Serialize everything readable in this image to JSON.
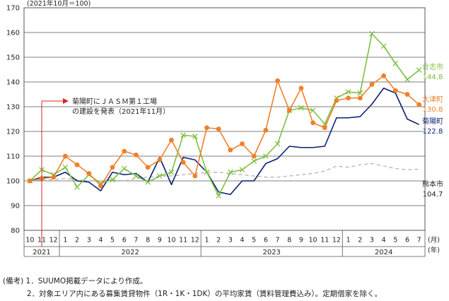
{
  "chart_data": {
    "type": "line",
    "unit_label": "(2021年10月＝100)",
    "y_ticks": [
      80,
      90,
      100,
      110,
      120,
      130,
      140,
      150,
      160,
      170
    ],
    "ylim": [
      80,
      170
    ],
    "month_labels": [
      "10",
      "11",
      "12",
      "1",
      "2",
      "3",
      "4",
      "5",
      "6",
      "7",
      "8",
      "9",
      "10",
      "11",
      "12",
      "1",
      "2",
      "3",
      "4",
      "5",
      "6",
      "7",
      "8",
      "9",
      "10",
      "11",
      "12",
      "1",
      "2",
      "3",
      "4",
      "5",
      "6",
      "7"
    ],
    "year_labels": [
      {
        "label": "2021",
        "start": 0,
        "end": 2
      },
      {
        "label": "2022",
        "start": 3,
        "end": 14
      },
      {
        "label": "2023",
        "start": 15,
        "end": 26
      },
      {
        "label": "2024",
        "start": 27,
        "end": 33
      }
    ],
    "x_unit_month": "(月)",
    "x_unit_year": "(年)",
    "series": [
      {
        "name": "合志市",
        "end_label": "144.8",
        "color": "#7bc043",
        "marker": "x",
        "dash": false,
        "values": [
          100,
          104.5,
          102.5,
          105.5,
          97.5,
          102.5,
          99,
          100.5,
          105,
          102,
          99.5,
          102,
          103.5,
          118.5,
          118,
          103.5,
          94,
          103.5,
          104.5,
          108,
          110,
          115,
          128.5,
          129.5,
          128.5,
          123,
          133.5,
          136,
          135.5,
          159.5,
          154.5,
          147.5,
          141,
          144.8
        ]
      },
      {
        "name": "大津町",
        "end_label": "130.8",
        "color": "#f07f2a",
        "marker": "o",
        "dash": false,
        "values": [
          100,
          101,
          101.5,
          110,
          106.5,
          103,
          98,
          105.5,
          112,
          110.5,
          105.5,
          108.5,
          116.5,
          107.5,
          102,
          121.5,
          121,
          112.5,
          115,
          110,
          120.5,
          140.5,
          128.5,
          137.5,
          123.5,
          121.5,
          132.5,
          133.5,
          133.5,
          139,
          142.5,
          136.5,
          135,
          130.8
        ]
      },
      {
        "name": "菊陽町",
        "end_label": "122.8",
        "color": "#0a1f73",
        "marker": "none",
        "dash": false,
        "values": [
          100,
          101.5,
          101.5,
          103.5,
          100,
          99.5,
          96,
          103.5,
          102.5,
          103,
          99.5,
          109.5,
          98.5,
          109.5,
          108.5,
          103.5,
          95.5,
          94.5,
          100,
          100,
          107,
          109,
          114,
          113.5,
          113.5,
          114,
          125.5,
          125.5,
          126,
          131,
          137.5,
          135.5,
          125,
          122.8
        ]
      },
      {
        "name": "熊本市",
        "end_label": "104.7",
        "color": "#b8b8b8",
        "marker": "none",
        "dash": true,
        "values": [
          100,
          100.5,
          100.5,
          101,
          100.5,
          100,
          100,
          100.5,
          100,
          101,
          101.5,
          102,
          102,
          102.5,
          103,
          103.5,
          103.5,
          103,
          102.5,
          102,
          101.5,
          101.5,
          102,
          102.5,
          103,
          104,
          106,
          105.5,
          106.5,
          107,
          106,
          105,
          104.5,
          104.7
        ]
      }
    ],
    "annotation": {
      "lines": [
        "菊陽町にＪＡＳＭ第１工場",
        "の建設を発表（2021年11月）"
      ],
      "x_index": 1,
      "color": "#e02020"
    }
  },
  "notes": {
    "heading": "(備考)",
    "line1": "1．SUUMO掲載データにより作成。",
    "line2": "2．対象エリア内にある募集賃貸物件（1R・1K・1DK）の平均家賃（賃料管理費込み）。定期借家を除く。"
  }
}
